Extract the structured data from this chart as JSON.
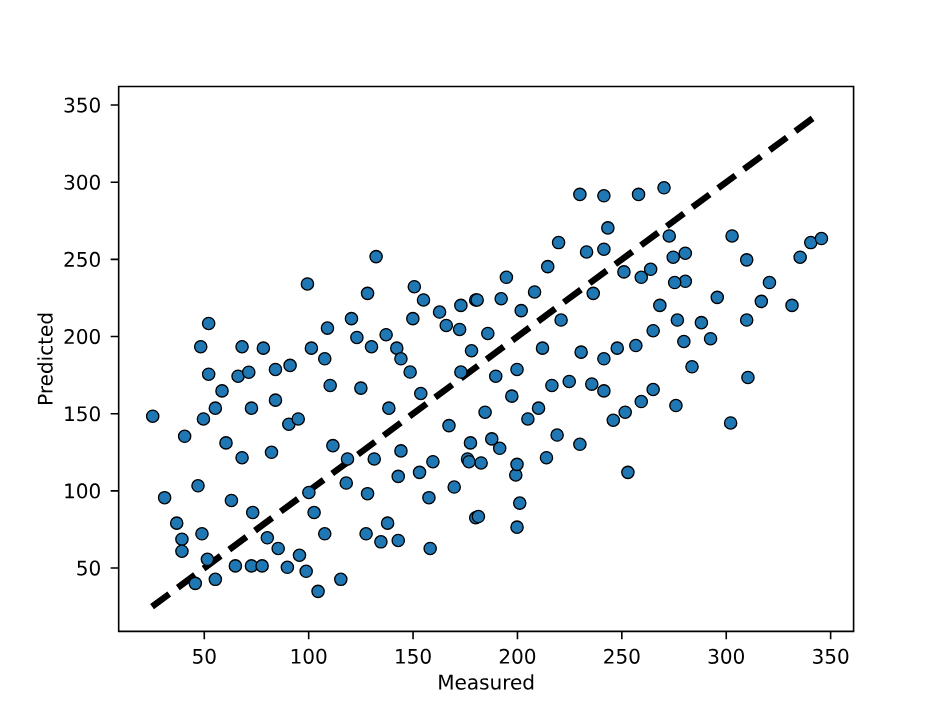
{
  "chart_data": {
    "type": "scatter",
    "xlabel": "Measured",
    "ylabel": "Predicted",
    "xlim": [
      9,
      361
    ],
    "ylim": [
      9,
      362
    ],
    "xticks": [
      50,
      100,
      150,
      200,
      250,
      300,
      350
    ],
    "yticks": [
      50,
      100,
      150,
      200,
      250,
      300,
      350
    ],
    "series": [
      {
        "color": "#1f77b4",
        "marker": "circle",
        "x": [
          48.3,
          52.1,
          52.1,
          58.5,
          66.2,
          68.1,
          71.3,
          78.3,
          84.1,
          91.1,
          99.4,
          101.3,
          109.0,
          107.7,
          120.5,
          123.1,
          128.2,
          130.1,
          132.3,
          137.1,
          142.2,
          144.2,
          150.6,
          149.9,
          155.0,
          162.7,
          165.9,
          172.9,
          172.3,
          178.0,
          180.0,
          25.3,
          31.0,
          40.6,
          36.8,
          39.3,
          39.3,
          45.7,
          47.0,
          49.6,
          55.3,
          48.9,
          51.5,
          55.3,
          60.4,
          63.0,
          64.9,
          68.1,
          72.6,
          73.2,
          72.6,
          77.7,
          80.2,
          82.2,
          84.1,
          85.4,
          90.5,
          89.8,
          95.0,
          95.6,
          98.8,
          100.1,
          104.5,
          102.6,
          107.7,
          110.3,
          111.6,
          115.4,
          118.6,
          118.0,
          128.2,
          127.5,
          134.6,
          137.8,
          142.9,
          142.9,
          148.6,
          153.7,
          153.1,
          158.2,
          157.6,
          159.5,
          169.7,
          167.2,
          180.0,
          125.0,
          138.4,
          131.4,
          144.2,
          172.9,
          176.1,
          229.9,
          241.4,
          258.0,
          270.2,
          219.7,
          233.1,
          243.3,
          241.4,
          214.5,
          194.7,
          180.7,
          192.2,
          208.2,
          201.8,
          220.9,
          236.3,
          251.0,
          259.3,
          263.8,
          272.7,
          274.6,
          280.4,
          280.4,
          275.3,
          268.2,
          276.6,
          288.1,
          295.7,
          292.5,
          302.8,
          309.8,
          320.7,
          316.8,
          331.5,
          335.4,
          340.5,
          345.6,
          309.8,
          310.4,
          212.0,
          185.8,
          230.5,
          247.8,
          256.7,
          265.0,
          279.7,
          283.6,
          241.4,
          199.8,
          302.1,
          275.9,
          252.9,
          245.9,
          251.6,
          259.3,
          265.0,
          229.9,
          213.9,
          219.0,
          201.1,
          199.8,
          181.3,
          199.2,
          199.8,
          191.5,
          182.6,
          176.8,
          177.5,
          187.7,
          184.5,
          189.6,
          205.0,
          210.1,
          216.5,
          224.8,
          235.6,
          241.4,
          197.3
        ],
        "values": [
          193.4,
          208.5,
          175.6,
          164.8,
          174.3,
          193.4,
          176.9,
          192.5,
          178.7,
          181.3,
          234.1,
          192.5,
          205.5,
          185.6,
          211.6,
          199.4,
          228.0,
          193.4,
          251.8,
          201.2,
          192.5,
          185.6,
          232.3,
          211.6,
          223.7,
          215.9,
          207.2,
          220.2,
          204.6,
          190.8,
          223.7,
          148.4,
          95.6,
          135.4,
          79.1,
          68.7,
          60.9,
          40.1,
          103.3,
          146.6,
          153.6,
          72.2,
          55.7,
          42.7,
          131.1,
          93.8,
          51.4,
          121.5,
          153.6,
          86.0,
          51.4,
          51.4,
          69.6,
          125.0,
          158.8,
          62.7,
          143.2,
          50.5,
          146.6,
          58.3,
          47.9,
          99.0,
          34.9,
          86.0,
          72.2,
          168.3,
          129.3,
          42.7,
          120.7,
          105.1,
          98.2,
          72.2,
          67.0,
          79.1,
          67.9,
          109.4,
          177.0,
          163.1,
          112.0,
          62.7,
          95.6,
          118.9,
          102.5,
          142.3,
          82.6,
          166.6,
          153.6,
          120.7,
          125.9,
          177.0,
          120.7,
          292.1,
          291.2,
          292.1,
          296.4,
          260.9,
          254.8,
          270.4,
          256.6,
          245.3,
          238.4,
          223.7,
          224.5,
          228.9,
          216.8,
          210.7,
          228.0,
          241.9,
          238.4,
          243.6,
          265.2,
          251.4,
          254.0,
          235.8,
          235.0,
          220.2,
          210.7,
          209.0,
          225.4,
          198.6,
          265.2,
          249.7,
          235.0,
          222.8,
          220.2,
          251.4,
          260.9,
          263.5,
          210.7,
          173.5,
          192.5,
          202.0,
          189.9,
          192.5,
          194.2,
          203.8,
          196.8,
          180.4,
          185.6,
          178.7,
          144.0,
          155.3,
          112.0,
          145.8,
          151.0,
          157.9,
          165.7,
          130.2,
          121.5,
          136.2,
          92.1,
          76.5,
          83.4,
          110.3,
          117.2,
          127.6,
          118.1,
          118.9,
          131.1,
          133.7,
          151.0,
          174.3,
          146.6,
          153.6,
          168.3,
          170.9,
          169.2,
          164.8,
          161.4
        ]
      },
      {
        "type": "line",
        "color": "#000000",
        "line_style": "dashed",
        "marker": "none",
        "x": [
          25,
          345
        ],
        "values": [
          25,
          345
        ]
      }
    ]
  }
}
